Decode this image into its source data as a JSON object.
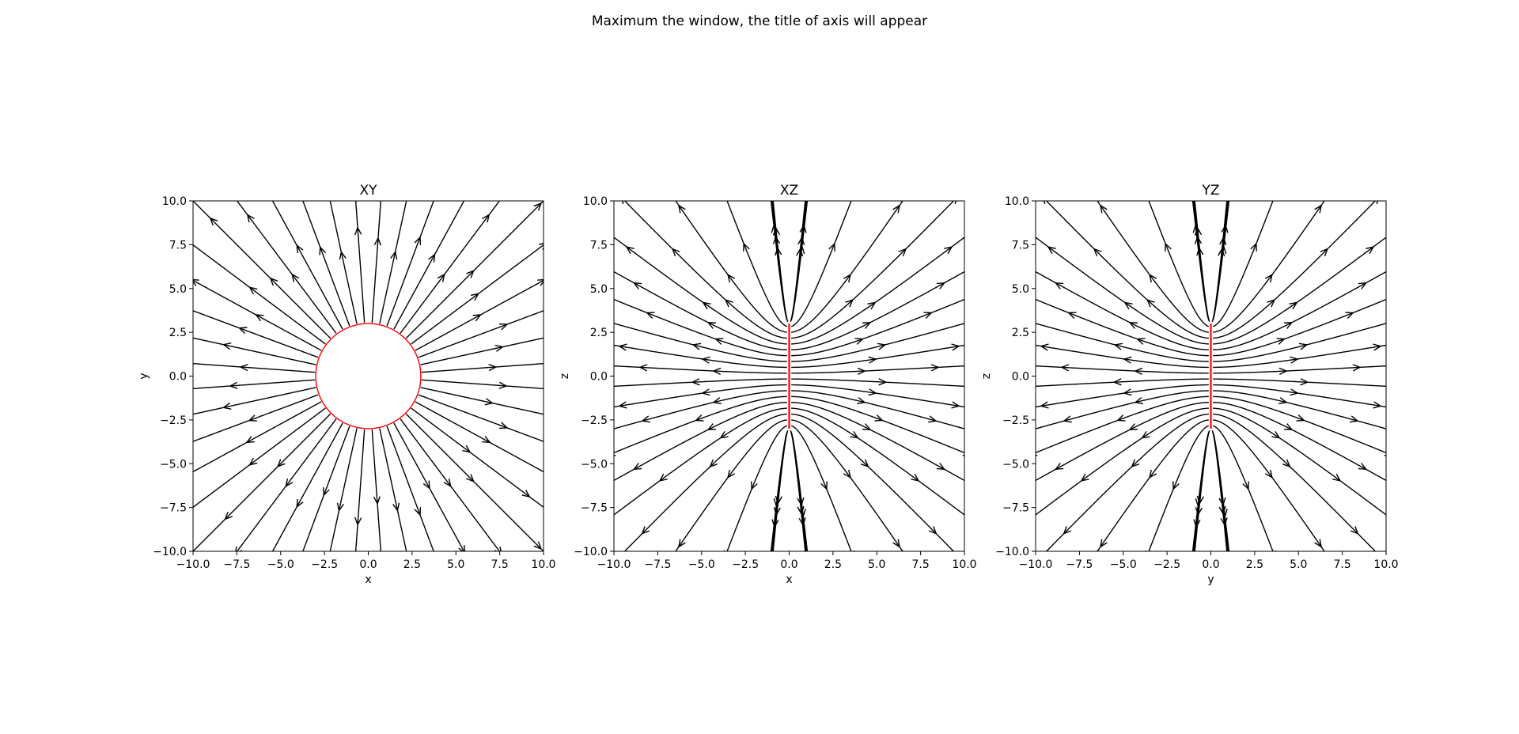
{
  "figure": {
    "suptitle": "Maximum the window, the title of axis will appear"
  },
  "chart_data": [
    {
      "type": "streamplot",
      "title": "XY",
      "xlabel": "x",
      "ylabel": "y",
      "xlim": [
        -10,
        10
      ],
      "ylim": [
        -10,
        10
      ],
      "xticks": [
        "−10.0",
        "−7.5",
        "−5.0",
        "−2.5",
        "0.0",
        "2.5",
        "5.0",
        "7.5",
        "10.0"
      ],
      "yticks": [
        "−10.0",
        "−7.5",
        "−5.0",
        "−2.5",
        "0.0",
        "2.5",
        "5.0",
        "7.5",
        "10.0"
      ],
      "field": "radial",
      "stream_color": "#000000",
      "source": {
        "shape": "circle",
        "radius": 3,
        "color": "#ff0000"
      }
    },
    {
      "type": "streamplot",
      "title": "XZ",
      "xlabel": "x",
      "ylabel": "z",
      "xlim": [
        -10,
        10
      ],
      "ylim": [
        -10,
        10
      ],
      "xticks": [
        "−10.0",
        "−7.5",
        "−5.0",
        "−2.5",
        "0.0",
        "2.5",
        "5.0",
        "7.5",
        "10.0"
      ],
      "yticks": [
        "−10.0",
        "−7.5",
        "−5.0",
        "−2.5",
        "0.0",
        "2.5",
        "5.0",
        "7.5",
        "10.0"
      ],
      "field": "line_segment",
      "stream_color": "#000000",
      "source": {
        "shape": "segment",
        "z_range": [
          -3,
          3
        ],
        "color": "#ff0000"
      }
    },
    {
      "type": "streamplot",
      "title": "YZ",
      "xlabel": "y",
      "ylabel": "z",
      "xlim": [
        -10,
        10
      ],
      "ylim": [
        -10,
        10
      ],
      "xticks": [
        "−10.0",
        "−7.5",
        "−5.0",
        "−2.5",
        "0.0",
        "2.5",
        "5.0",
        "7.5",
        "10.0"
      ],
      "yticks": [
        "−10.0",
        "−7.5",
        "−5.0",
        "−2.5",
        "0.0",
        "2.5",
        "5.0",
        "7.5",
        "10.0"
      ],
      "field": "line_segment",
      "stream_color": "#000000",
      "source": {
        "shape": "segment",
        "z_range": [
          -3,
          3
        ],
        "color": "#ff0000"
      }
    }
  ]
}
